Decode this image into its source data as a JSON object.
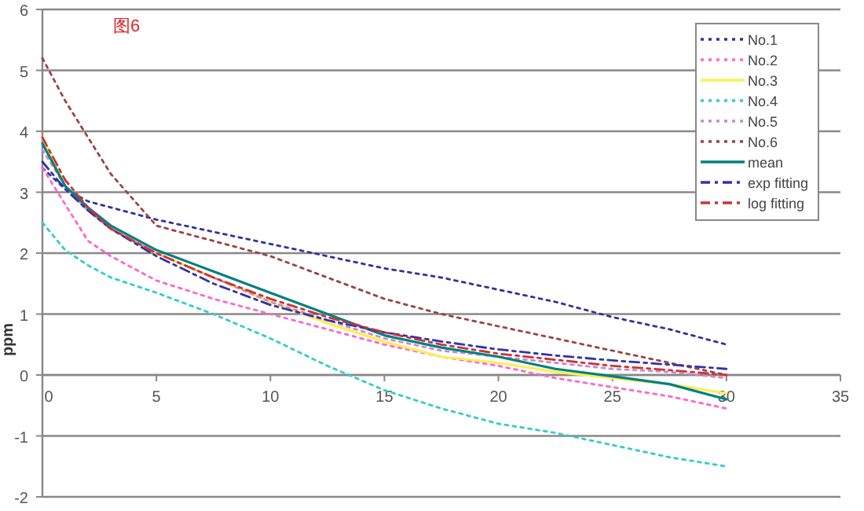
{
  "chart_data": {
    "type": "line",
    "ylabel": "ppm",
    "annotations": [
      "图6"
    ],
    "x": [
      0,
      1,
      2,
      3,
      5,
      7.5,
      10,
      12.5,
      15,
      17.5,
      20,
      22.5,
      25,
      27.5,
      30
    ],
    "xlim": [
      0,
      35
    ],
    "xticks": [
      0,
      5,
      10,
      15,
      20,
      25,
      30,
      35
    ],
    "ylim": [
      -2,
      6
    ],
    "yticks": [
      -2,
      -1,
      0,
      1,
      2,
      3,
      4,
      5,
      6
    ],
    "grid": "y",
    "legend": "top right",
    "marker": "none",
    "series": [
      {
        "name": "No.1",
        "color": "#333399",
        "line_style": "dotted",
        "values": [
          3.4,
          3.05,
          2.85,
          2.75,
          2.55,
          2.35,
          2.15,
          1.95,
          1.75,
          1.6,
          1.4,
          1.2,
          0.95,
          0.75,
          0.5
        ]
      },
      {
        "name": "No.2",
        "color": "#ff66cc",
        "line_style": "dotted",
        "values": [
          3.4,
          2.8,
          2.2,
          1.95,
          1.55,
          1.25,
          1.0,
          0.75,
          0.5,
          0.3,
          0.15,
          -0.05,
          -0.2,
          -0.35,
          -0.55
        ]
      },
      {
        "name": "No.3",
        "color": "#ffee55",
        "line_style": "solid",
        "values": [
          3.9,
          3.1,
          2.7,
          2.4,
          2.0,
          1.6,
          1.2,
          0.85,
          0.55,
          0.3,
          0.2,
          0.05,
          -0.05,
          -0.15,
          -0.3
        ]
      },
      {
        "name": "No.4",
        "color": "#33cccc",
        "line_style": "dotted",
        "values": [
          2.5,
          2.05,
          1.8,
          1.6,
          1.35,
          1.0,
          0.6,
          0.15,
          -0.25,
          -0.55,
          -0.8,
          -0.95,
          -1.15,
          -1.35,
          -1.5
        ]
      },
      {
        "name": "No.5",
        "color": "#cc88cc",
        "line_style": "dotted",
        "values": [
          3.7,
          3.1,
          2.7,
          2.4,
          2.0,
          1.6,
          1.2,
          0.9,
          0.6,
          0.4,
          0.3,
          0.2,
          0.1,
          0.05,
          -0.05
        ]
      },
      {
        "name": "No.6",
        "color": "#994444",
        "line_style": "dotted",
        "values": [
          5.2,
          4.5,
          3.9,
          3.3,
          2.45,
          2.2,
          1.95,
          1.6,
          1.25,
          1.0,
          0.8,
          0.6,
          0.4,
          0.2,
          0.0
        ]
      },
      {
        "name": "mean",
        "color": "#008080",
        "line_style": "solid",
        "values": [
          3.8,
          3.1,
          2.75,
          2.45,
          2.05,
          1.7,
          1.35,
          1.0,
          0.65,
          0.45,
          0.3,
          0.1,
          -0.02,
          -0.15,
          -0.4
        ]
      },
      {
        "name": "exp fitting",
        "color": "#3333aa",
        "line_style": "dashed",
        "values": [
          3.5,
          3.05,
          2.7,
          2.4,
          1.95,
          1.5,
          1.15,
          0.9,
          0.7,
          0.55,
          0.42,
          0.32,
          0.24,
          0.17,
          0.1
        ]
      },
      {
        "name": "log fitting",
        "color": "#cc3333",
        "line_style": "dashed",
        "values": [
          3.9,
          3.2,
          2.75,
          2.4,
          2.0,
          1.6,
          1.25,
          0.95,
          0.7,
          0.5,
          0.35,
          0.25,
          0.15,
          0.08,
          0.0
        ]
      }
    ]
  }
}
